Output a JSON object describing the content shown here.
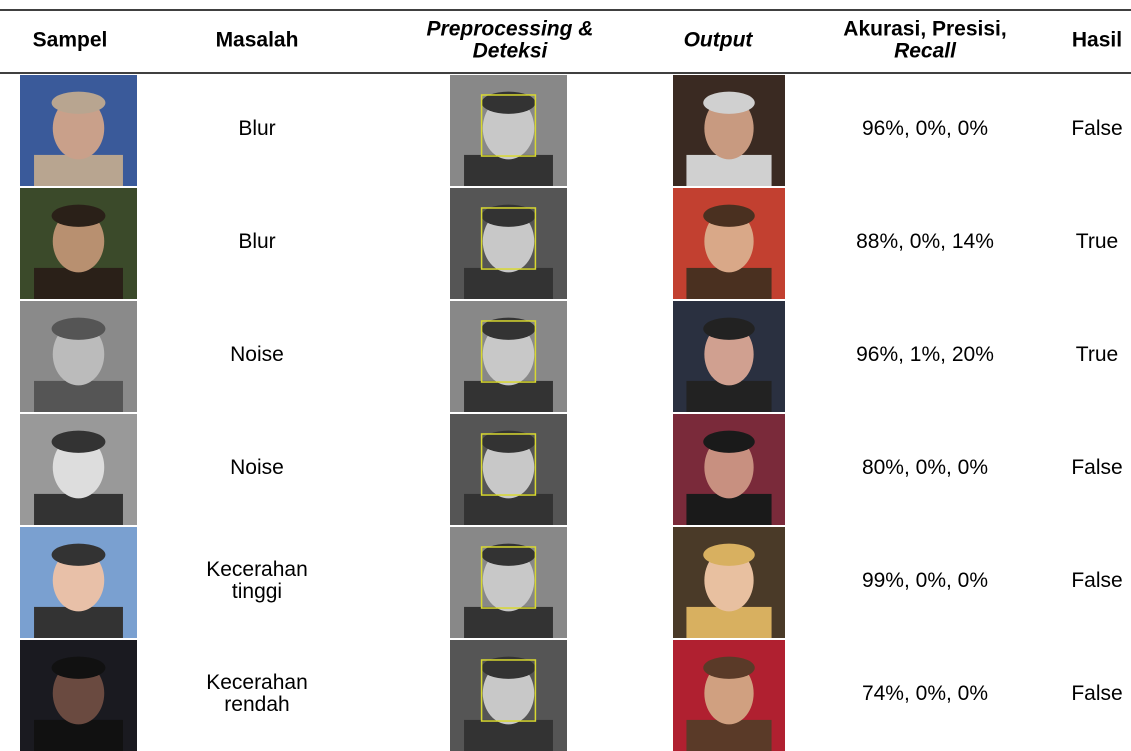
{
  "table": {
    "headers": [
      [
        "Sampel"
      ],
      [
        "Masalah"
      ],
      [
        "Preprocessing &",
        "Deteksi"
      ],
      [
        "Output"
      ],
      [
        "Akurasi, Presisi,",
        "Recall"
      ],
      [
        "Hasil"
      ]
    ],
    "rows": [
      [
        [
          "Blur"
        ],
        "96%, 0%, 0%",
        "False"
      ],
      [
        [
          "Blur"
        ],
        "88%, 0%, 14%",
        "True"
      ],
      [
        [
          "Noise"
        ],
        "96%, 1%, 20%",
        "True"
      ],
      [
        [
          "Noise"
        ],
        "80%, 0%, 0%",
        "False"
      ],
      [
        [
          "Kecerahan",
          "tinggi"
        ],
        "99%, 0%, 0%",
        "False"
      ],
      [
        [
          "Kecerahan",
          "rendah"
        ],
        "74%, 0%, 0%",
        "False"
      ]
    ]
  }
}
